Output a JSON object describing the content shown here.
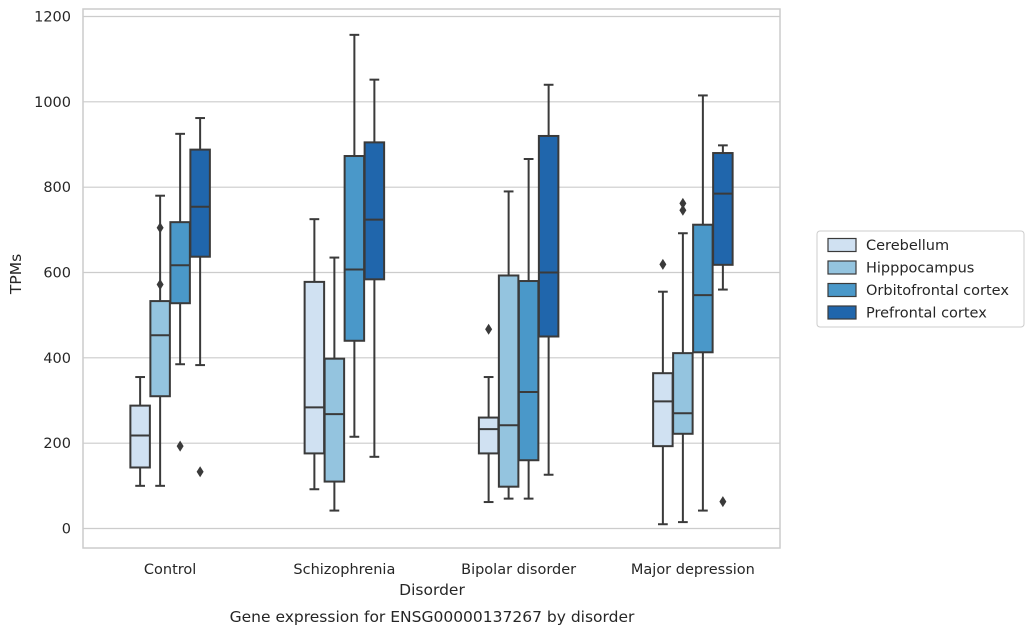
{
  "chart_data": {
    "type": "box",
    "title": "",
    "caption": "Gene expression for ENSG00000137267 by disorder",
    "xlabel": "Disorder",
    "ylabel": "TPMs",
    "ylim": [
      -45,
      1220
    ],
    "yticks": [
      0,
      200,
      400,
      600,
      800,
      1000,
      1200
    ],
    "grid": true,
    "legend_position": "right",
    "categories": [
      "Control",
      "Schizophrenia",
      "Bipolar disorder",
      "Major depression"
    ],
    "series": [
      {
        "name": "Cerebellum",
        "color": "#d0e1f2",
        "boxes": [
          {
            "whisker_low": 100,
            "q1": 143,
            "median": 218,
            "q3": 288,
            "whisker_high": 355,
            "outliers": []
          },
          {
            "whisker_low": 92,
            "q1": 176,
            "median": 284,
            "q3": 578,
            "whisker_high": 725,
            "outliers": []
          },
          {
            "whisker_low": 62,
            "q1": 176,
            "median": 233,
            "q3": 260,
            "whisker_high": 355,
            "outliers": [
              467
            ]
          },
          {
            "whisker_low": 10,
            "q1": 193,
            "median": 298,
            "q3": 364,
            "whisker_high": 555,
            "outliers": [
              619
            ]
          }
        ]
      },
      {
        "name": "Hipppocampus",
        "color": "#94c4df",
        "boxes": [
          {
            "whisker_low": 100,
            "q1": 310,
            "median": 453,
            "q3": 533,
            "whisker_high": 780,
            "outliers": [
              705,
              572
            ]
          },
          {
            "whisker_low": 42,
            "q1": 110,
            "median": 268,
            "q3": 398,
            "whisker_high": 635,
            "outliers": []
          },
          {
            "whisker_low": 70,
            "q1": 98,
            "median": 242,
            "q3": 593,
            "whisker_high": 790,
            "outliers": []
          },
          {
            "whisker_low": 15,
            "q1": 222,
            "median": 270,
            "q3": 411,
            "whisker_high": 692,
            "outliers": [
              762,
              746
            ]
          }
        ]
      },
      {
        "name": "Orbitofrontal cortex",
        "color": "#4a98c9",
        "boxes": [
          {
            "whisker_low": 385,
            "q1": 528,
            "median": 617,
            "q3": 718,
            "whisker_high": 925,
            "outliers": [
              193
            ]
          },
          {
            "whisker_low": 215,
            "q1": 440,
            "median": 607,
            "q3": 873,
            "whisker_high": 1157,
            "outliers": []
          },
          {
            "whisker_low": 70,
            "q1": 160,
            "median": 320,
            "q3": 580,
            "whisker_high": 866,
            "outliers": []
          },
          {
            "whisker_low": 42,
            "q1": 413,
            "median": 547,
            "q3": 712,
            "whisker_high": 1015,
            "outliers": []
          }
        ]
      },
      {
        "name": "Prefrontal cortex",
        "color": "#2066ac",
        "boxes": [
          {
            "whisker_low": 383,
            "q1": 637,
            "median": 754,
            "q3": 888,
            "whisker_high": 962,
            "outliers": [
              133
            ]
          },
          {
            "whisker_low": 168,
            "q1": 584,
            "median": 724,
            "q3": 905,
            "whisker_high": 1052,
            "outliers": []
          },
          {
            "whisker_low": 126,
            "q1": 450,
            "median": 600,
            "q3": 920,
            "whisker_high": 1040,
            "outliers": []
          },
          {
            "whisker_low": 560,
            "q1": 618,
            "median": 785,
            "q3": 880,
            "whisker_high": 898,
            "outliers": [
              63
            ]
          }
        ]
      }
    ]
  }
}
